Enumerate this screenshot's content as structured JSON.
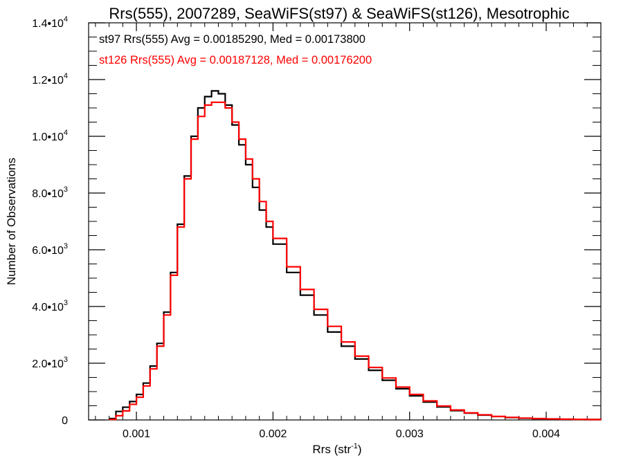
{
  "chart_data": {
    "type": "line",
    "step": true,
    "title": "Rrs(555), 2007289, SeaWiFS(st97) & SeaWiFS(st126), Mesotrophic",
    "xlabel": "Rrs (str",
    "xlabel_exp": "-1",
    "xlabel_suffix": ")",
    "ylabel": "Number of Observations",
    "xlim": [
      0.00065,
      0.0044
    ],
    "ylim": [
      0,
      14000
    ],
    "grid": false,
    "legend_placement": "top-left",
    "x_ticks": [
      {
        "value": 0.001,
        "label": "0.001"
      },
      {
        "value": 0.002,
        "label": "0.002"
      },
      {
        "value": 0.003,
        "label": "0.003"
      },
      {
        "value": 0.004,
        "label": "0.004"
      }
    ],
    "y_ticks": [
      {
        "value": 0,
        "mant": "0",
        "exp": ""
      },
      {
        "value": 2000,
        "mant": "2.0•10",
        "exp": "3"
      },
      {
        "value": 4000,
        "mant": "4.0•10",
        "exp": "3"
      },
      {
        "value": 6000,
        "mant": "6.0•10",
        "exp": "3"
      },
      {
        "value": 8000,
        "mant": "8.0•10",
        "exp": "3"
      },
      {
        "value": 10000,
        "mant": "1.0•10",
        "exp": "4"
      },
      {
        "value": 12000,
        "mant": "1.2•10",
        "exp": "4"
      },
      {
        "value": 14000,
        "mant": "1.4•10",
        "exp": "4"
      }
    ],
    "x": [
      0.0008,
      0.00085,
      0.0009,
      0.00095,
      0.001,
      0.00105,
      0.0011,
      0.00115,
      0.0012,
      0.00125,
      0.0013,
      0.00135,
      0.0014,
      0.00145,
      0.0015,
      0.00155,
      0.0016,
      0.00165,
      0.0017,
      0.00175,
      0.0018,
      0.00185,
      0.0019,
      0.00195,
      0.002,
      0.0021,
      0.0022,
      0.0023,
      0.0024,
      0.0025,
      0.0026,
      0.0027,
      0.0028,
      0.0029,
      0.003,
      0.0031,
      0.0032,
      0.0033,
      0.0034,
      0.0035,
      0.0036,
      0.0037,
      0.0038,
      0.0039,
      0.004,
      0.0041,
      0.0042,
      0.0043,
      0.0044
    ],
    "series": [
      {
        "name": "st97 Rrs(555) Avg = 0.00185290, Med = 0.00173800",
        "color": "#000000",
        "values": [
          50,
          300,
          450,
          650,
          900,
          1300,
          1900,
          2700,
          3800,
          5200,
          6900,
          8600,
          10000,
          11000,
          11400,
          11600,
          11500,
          11100,
          10400,
          9700,
          9000,
          8200,
          7400,
          6800,
          6200,
          5200,
          4400,
          3700,
          3100,
          2600,
          2150,
          1750,
          1400,
          1100,
          850,
          630,
          460,
          330,
          240,
          170,
          120,
          85,
          60,
          45,
          35,
          25,
          20,
          15,
          10
        ]
      },
      {
        "name": "st126 Rrs(555) Avg = 0.00187128, Med = 0.00176200",
        "color": "#ff0000",
        "values": [
          20,
          150,
          320,
          550,
          800,
          1200,
          1800,
          2600,
          3700,
          5100,
          6800,
          8500,
          9900,
          10700,
          11100,
          11200,
          11200,
          11000,
          10500,
          9900,
          9200,
          8500,
          7700,
          7000,
          6400,
          5400,
          4600,
          3900,
          3300,
          2750,
          2250,
          1850,
          1480,
          1160,
          900,
          670,
          490,
          350,
          250,
          180,
          125,
          90,
          65,
          48,
          36,
          27,
          21,
          16,
          11
        ]
      }
    ]
  }
}
